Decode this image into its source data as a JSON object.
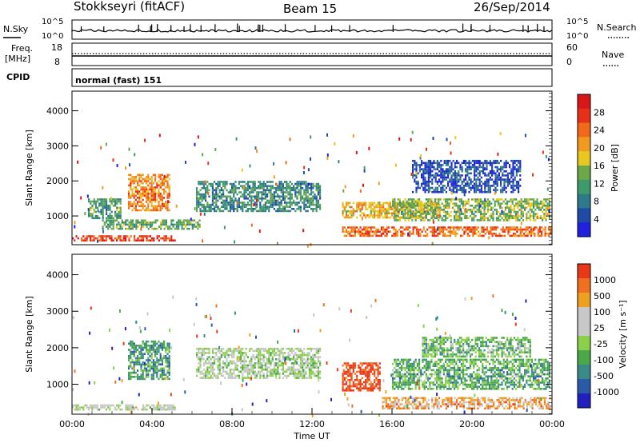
{
  "header": {
    "station": "Stokkseyri (fitACF)",
    "beam": "Beam 15",
    "date": "26/Sep/2014"
  },
  "summary_panel": {
    "nsky_label": "N.Sky",
    "nsky_ticks": [
      "10^5",
      "10^0"
    ],
    "nsearch_label": "N.Search",
    "nsearch_ticks": [
      "10^5",
      "10^0"
    ],
    "freq_label": "Freq.",
    "freq_unit": "[MHz]",
    "freq_ticks": [
      "18",
      "8"
    ],
    "nave_label": "Nave",
    "nave_ticks": [
      "60",
      "0"
    ],
    "cpid_label": "CPID",
    "cpid_value": "normal (fast) 151"
  },
  "chart_data": [
    {
      "type": "heatmap",
      "name": "power-panel",
      "ylabel": "Slant Range [km]",
      "ylim": [
        180,
        4560
      ],
      "yticks": [
        "1000",
        "2000",
        "3000",
        "4000"
      ],
      "colorbar_label": "Power [dB]",
      "colorbar_ticks": [
        "4",
        "8",
        "12",
        "16",
        "20",
        "24",
        "28"
      ],
      "colorbar_colors": [
        "#2020e0",
        "#1f4aa8",
        "#2f7a8a",
        "#3f9a6a",
        "#6aa84a",
        "#e8c820",
        "#f09a20",
        "#f06a1a",
        "#e83018",
        "#d81818"
      ],
      "regions": [
        {
          "t0": 0.0,
          "t1": 5.2,
          "r0": 250,
          "r1": 450,
          "level": 0.85
        },
        {
          "t0": 0.8,
          "t1": 2.5,
          "r0": 900,
          "r1": 1500,
          "level": 0.35
        },
        {
          "t0": 2.8,
          "t1": 5.0,
          "r0": 1100,
          "r1": 2200,
          "level": 0.7
        },
        {
          "t0": 1.5,
          "t1": 6.5,
          "r0": 600,
          "r1": 900,
          "level": 0.4
        },
        {
          "t0": 6.2,
          "t1": 12.5,
          "r0": 1100,
          "r1": 2000,
          "level": 0.3
        },
        {
          "t0": 13.5,
          "t1": 24.0,
          "r0": 400,
          "r1": 700,
          "level": 0.75
        },
        {
          "t0": 13.5,
          "t1": 18.5,
          "r0": 900,
          "r1": 1400,
          "level": 0.6
        },
        {
          "t0": 16.0,
          "t1": 24.0,
          "r0": 800,
          "r1": 1500,
          "level": 0.45
        },
        {
          "t0": 17.0,
          "t1": 22.5,
          "r0": 1600,
          "r1": 2600,
          "level": 0.15
        }
      ]
    },
    {
      "type": "heatmap",
      "name": "velocity-panel",
      "xlabel": "Time UT",
      "xticks": [
        "00:00",
        "04:00",
        "08:00",
        "12:00",
        "16:00",
        "20:00",
        "00:00"
      ],
      "xlim": [
        0,
        24
      ],
      "ylabel": "Slant Range [km]",
      "ylim": [
        180,
        4560
      ],
      "yticks": [
        "1000",
        "2000",
        "3000",
        "4000"
      ],
      "colorbar_label": "Velocity [m s⁻¹]",
      "colorbar_ticks": [
        "1000",
        "500",
        "100",
        "25",
        "-25",
        "-100",
        "-500",
        "-1000"
      ],
      "colorbar_colors": [
        "#2020c0",
        "#2a5aa8",
        "#3a8a8a",
        "#4aa84a",
        "#8ad04a",
        "#c8c8c8",
        "#c8c8c8",
        "#f0a020",
        "#f07020",
        "#e83818"
      ],
      "regions": [
        {
          "t0": 0.0,
          "t1": 5.2,
          "r0": 250,
          "r1": 450,
          "level": 0.55
        },
        {
          "t0": 2.8,
          "t1": 5.0,
          "r0": 1100,
          "r1": 2200,
          "level": 0.3
        },
        {
          "t0": 6.2,
          "t1": 12.5,
          "r0": 1100,
          "r1": 2000,
          "level": 0.5
        },
        {
          "t0": 13.5,
          "t1": 15.5,
          "r0": 800,
          "r1": 1600,
          "level": 0.95
        },
        {
          "t0": 15.5,
          "t1": 24.0,
          "r0": 300,
          "r1": 650,
          "level": 0.75
        },
        {
          "t0": 16.0,
          "t1": 24.0,
          "r0": 800,
          "r1": 1700,
          "level": 0.35
        },
        {
          "t0": 17.5,
          "t1": 23.0,
          "r0": 1700,
          "r1": 2300,
          "level": 0.4
        }
      ]
    }
  ]
}
